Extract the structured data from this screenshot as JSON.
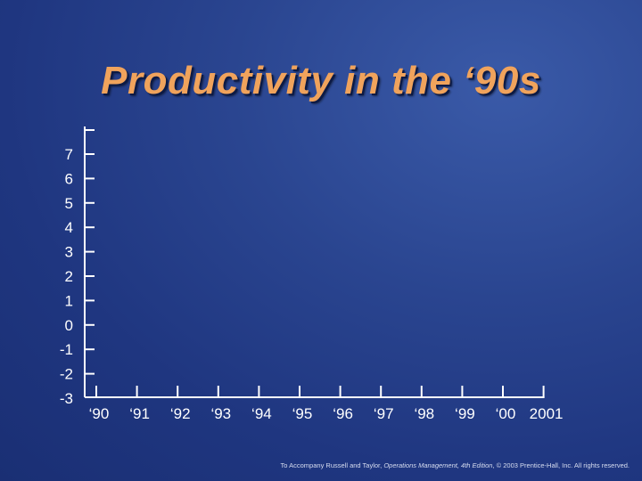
{
  "slide": {
    "title": "Productivity in the ‘90s"
  },
  "footer": {
    "prefix": "To Accompany Russell and Taylor, ",
    "book": "Operations Management, 4th Edition",
    "suffix": ", © 2003 Prentice-Hall, Inc. All rights reserved."
  },
  "colors": {
    "background": "#2a4590",
    "title": "#f0a35c",
    "axis": "#ffffff"
  },
  "chart_data": {
    "type": "line",
    "title": "",
    "xlabel": "",
    "ylabel": "",
    "categories": [
      "‘90",
      "‘91",
      "‘92",
      "‘93",
      "‘94",
      "‘95",
      "‘96",
      "‘97",
      "‘98",
      "‘99",
      "‘00",
      "2001"
    ],
    "y_ticks": [
      "7",
      "6",
      "5",
      "4",
      "3",
      "2",
      "1",
      "0",
      "-1",
      "-2",
      "-3"
    ],
    "ylim": [
      -3,
      8
    ],
    "series": [],
    "grid": false,
    "legend": "none"
  }
}
